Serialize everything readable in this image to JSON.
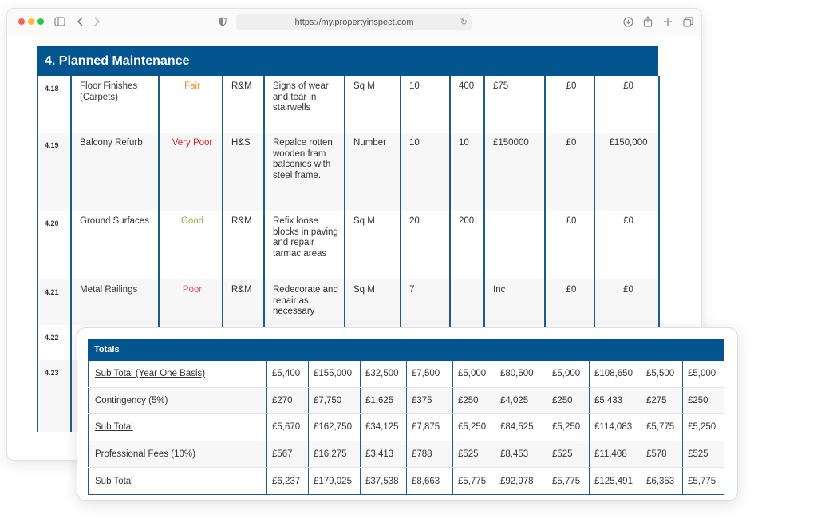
{
  "browser": {
    "url": "https://my.propertyinspect.com",
    "icons": [
      "sidebar-icon",
      "back-icon",
      "forward-icon",
      "privacy-shield-icon",
      "reload-icon",
      "download-icon",
      "share-icon",
      "new-tab-icon",
      "tabs-overview-icon"
    ]
  },
  "section": {
    "title": "4. Planned Maintenance",
    "rows": [
      {
        "ref": "4.18",
        "element": "Floor Finishes (Carpets)",
        "condition": "Fair",
        "condition_color": "#f08a24",
        "category": "R&M",
        "action": "Signs of wear and tear in stairwells",
        "unit": "Sq M",
        "qty": "10",
        "qty2": "400",
        "rate": "£75",
        "cost1": "£0",
        "cost2": "£0"
      },
      {
        "ref": "4.19",
        "element": "Balcony Refurb",
        "condition": "Very Poor",
        "condition_color": "#e02020",
        "category": "H&S",
        "action": "Repalce rotten wooden fram balconies with steel frame.",
        "unit": "Number",
        "qty": "10",
        "qty2": "10",
        "rate": "£150000",
        "cost1": "£0",
        "cost2": "£150,000"
      },
      {
        "ref": "4.20",
        "element": "Ground Surfaces",
        "condition": "Good",
        "condition_color": "#8ab33a",
        "category": "R&M",
        "action": "Refix loose blocks in paving and repair tarmac areas",
        "unit": "Sq M",
        "qty": "20",
        "qty2": "200",
        "rate": "",
        "cost1": "£0",
        "cost2": "£0"
      },
      {
        "ref": "4.21",
        "element": "Metal Railings",
        "condition": "Poor",
        "condition_color": "#f0506e",
        "category": "R&M",
        "action": "Redecorate and repair as necessary",
        "unit": "Sq M",
        "qty": "7",
        "qty2": "",
        "rate": "Inc",
        "cost1": "£0",
        "cost2": "£0"
      },
      {
        "ref": "4.22",
        "element": "",
        "condition": "",
        "condition_color": "#333333",
        "category": "",
        "action": "",
        "unit": "",
        "qty": "",
        "qty2": "",
        "rate": "",
        "cost1": "",
        "cost2": ""
      },
      {
        "ref": "4.23",
        "element": "",
        "condition": "",
        "condition_color": "#333333",
        "category": "",
        "action": "",
        "unit": "",
        "qty": "",
        "qty2": "",
        "rate": "",
        "cost1": "",
        "cost2": ""
      }
    ]
  },
  "totals": {
    "title": "Totals",
    "rows": [
      {
        "label": "Sub Total (Year One Basis)",
        "underline": true,
        "values": [
          "£5,400",
          "£155,000",
          "£32,500",
          "£7,500",
          "£5,000",
          "£80,500",
          "£5,000",
          "£108,650",
          "£5,500",
          "£5,000"
        ]
      },
      {
        "label": "Contingency (5%)",
        "underline": false,
        "values": [
          "£270",
          "£7,750",
          "£1,625",
          "£375",
          "£250",
          "£4,025",
          "£250",
          "£5,433",
          "£275",
          "£250"
        ]
      },
      {
        "label": "Sub Total",
        "underline": true,
        "values": [
          "£5,670",
          "£162,750",
          "£34,125",
          "£7,875",
          "£5,250",
          "£84,525",
          "£5,250",
          "£114,083",
          "£5,775",
          "£5,250"
        ]
      },
      {
        "label": "Professional Fees (10%)",
        "underline": false,
        "values": [
          "£567",
          "£16,275",
          "£3,413",
          "£788",
          "£525",
          "£8,453",
          "£525",
          "£11,408",
          "£578",
          "£525"
        ]
      },
      {
        "label": "Sub Total",
        "underline": true,
        "values": [
          "£6,237",
          "£179,025",
          "£37,538",
          "£8,663",
          "£5,775",
          "£92,978",
          "£5,775",
          "£125,491",
          "£6,353",
          "£5,775"
        ]
      }
    ]
  }
}
